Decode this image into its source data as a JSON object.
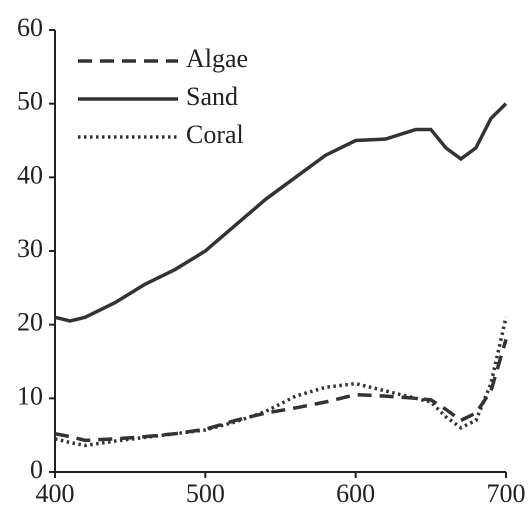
{
  "chart_data": {
    "type": "line",
    "x": [
      400,
      410,
      420,
      440,
      460,
      480,
      500,
      520,
      540,
      560,
      580,
      600,
      620,
      640,
      650,
      660,
      670,
      680,
      690,
      700
    ],
    "series": [
      {
        "name": "Algae",
        "color": "#333333",
        "dash": "dashed",
        "values": [
          5.2,
          4.8,
          4.3,
          4.5,
          4.8,
          5.2,
          5.8,
          7,
          8,
          8.7,
          9.5,
          10.5,
          10.3,
          10,
          9.8,
          8.5,
          7,
          8,
          11,
          18
        ]
      },
      {
        "name": "Sand",
        "color": "#333333",
        "dash": "solid",
        "values": [
          21,
          20.5,
          21,
          23,
          25.5,
          27.5,
          30,
          33.5,
          37,
          40,
          43,
          45,
          45.2,
          46.5,
          46.5,
          44,
          42.5,
          44,
          48,
          50
        ]
      },
      {
        "name": "Coral",
        "color": "#333333",
        "dash": "dotted",
        "values": [
          4.5,
          4,
          3.6,
          4.2,
          4.7,
          5.2,
          5.7,
          6.8,
          8.2,
          10.3,
          11.5,
          12,
          11,
          10,
          9.5,
          7.5,
          6,
          7,
          12,
          21
        ]
      }
    ],
    "xlim": [
      400,
      700
    ],
    "xticks": [
      400,
      500,
      600,
      700
    ],
    "ylim": [
      0,
      60
    ],
    "yticks": [
      0,
      10,
      20,
      30,
      40,
      50,
      60
    ],
    "legend": "upper-left"
  }
}
